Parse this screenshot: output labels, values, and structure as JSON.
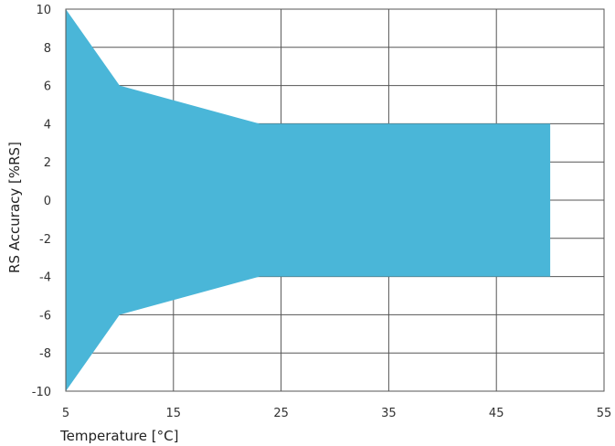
{
  "chart_data": {
    "type": "area",
    "title": "",
    "xlabel": "Temperature [°C]",
    "ylabel": "RS Accuracy [%RS]",
    "xlim": [
      5,
      55
    ],
    "ylim": [
      -10,
      10
    ],
    "x_ticks": [
      5,
      15,
      25,
      35,
      45,
      55
    ],
    "y_ticks": [
      10,
      8,
      6,
      4,
      2,
      0,
      -2,
      -4,
      -6,
      -8,
      -10
    ],
    "x_tick_labels": [
      "5",
      "15",
      "25",
      "35",
      "45",
      "55"
    ],
    "y_tick_labels": [
      "10",
      "8",
      "6",
      "4",
      "2",
      "0",
      "-2",
      "-4",
      "-6",
      "-8",
      "-10"
    ],
    "grid": true,
    "series": [
      {
        "x": [
          5,
          10,
          23,
          50
        ],
        "upper": [
          10,
          6,
          4,
          4
        ],
        "lower": [
          -10,
          -6,
          -4,
          -4
        ],
        "color": "#4ab6d8"
      }
    ]
  }
}
